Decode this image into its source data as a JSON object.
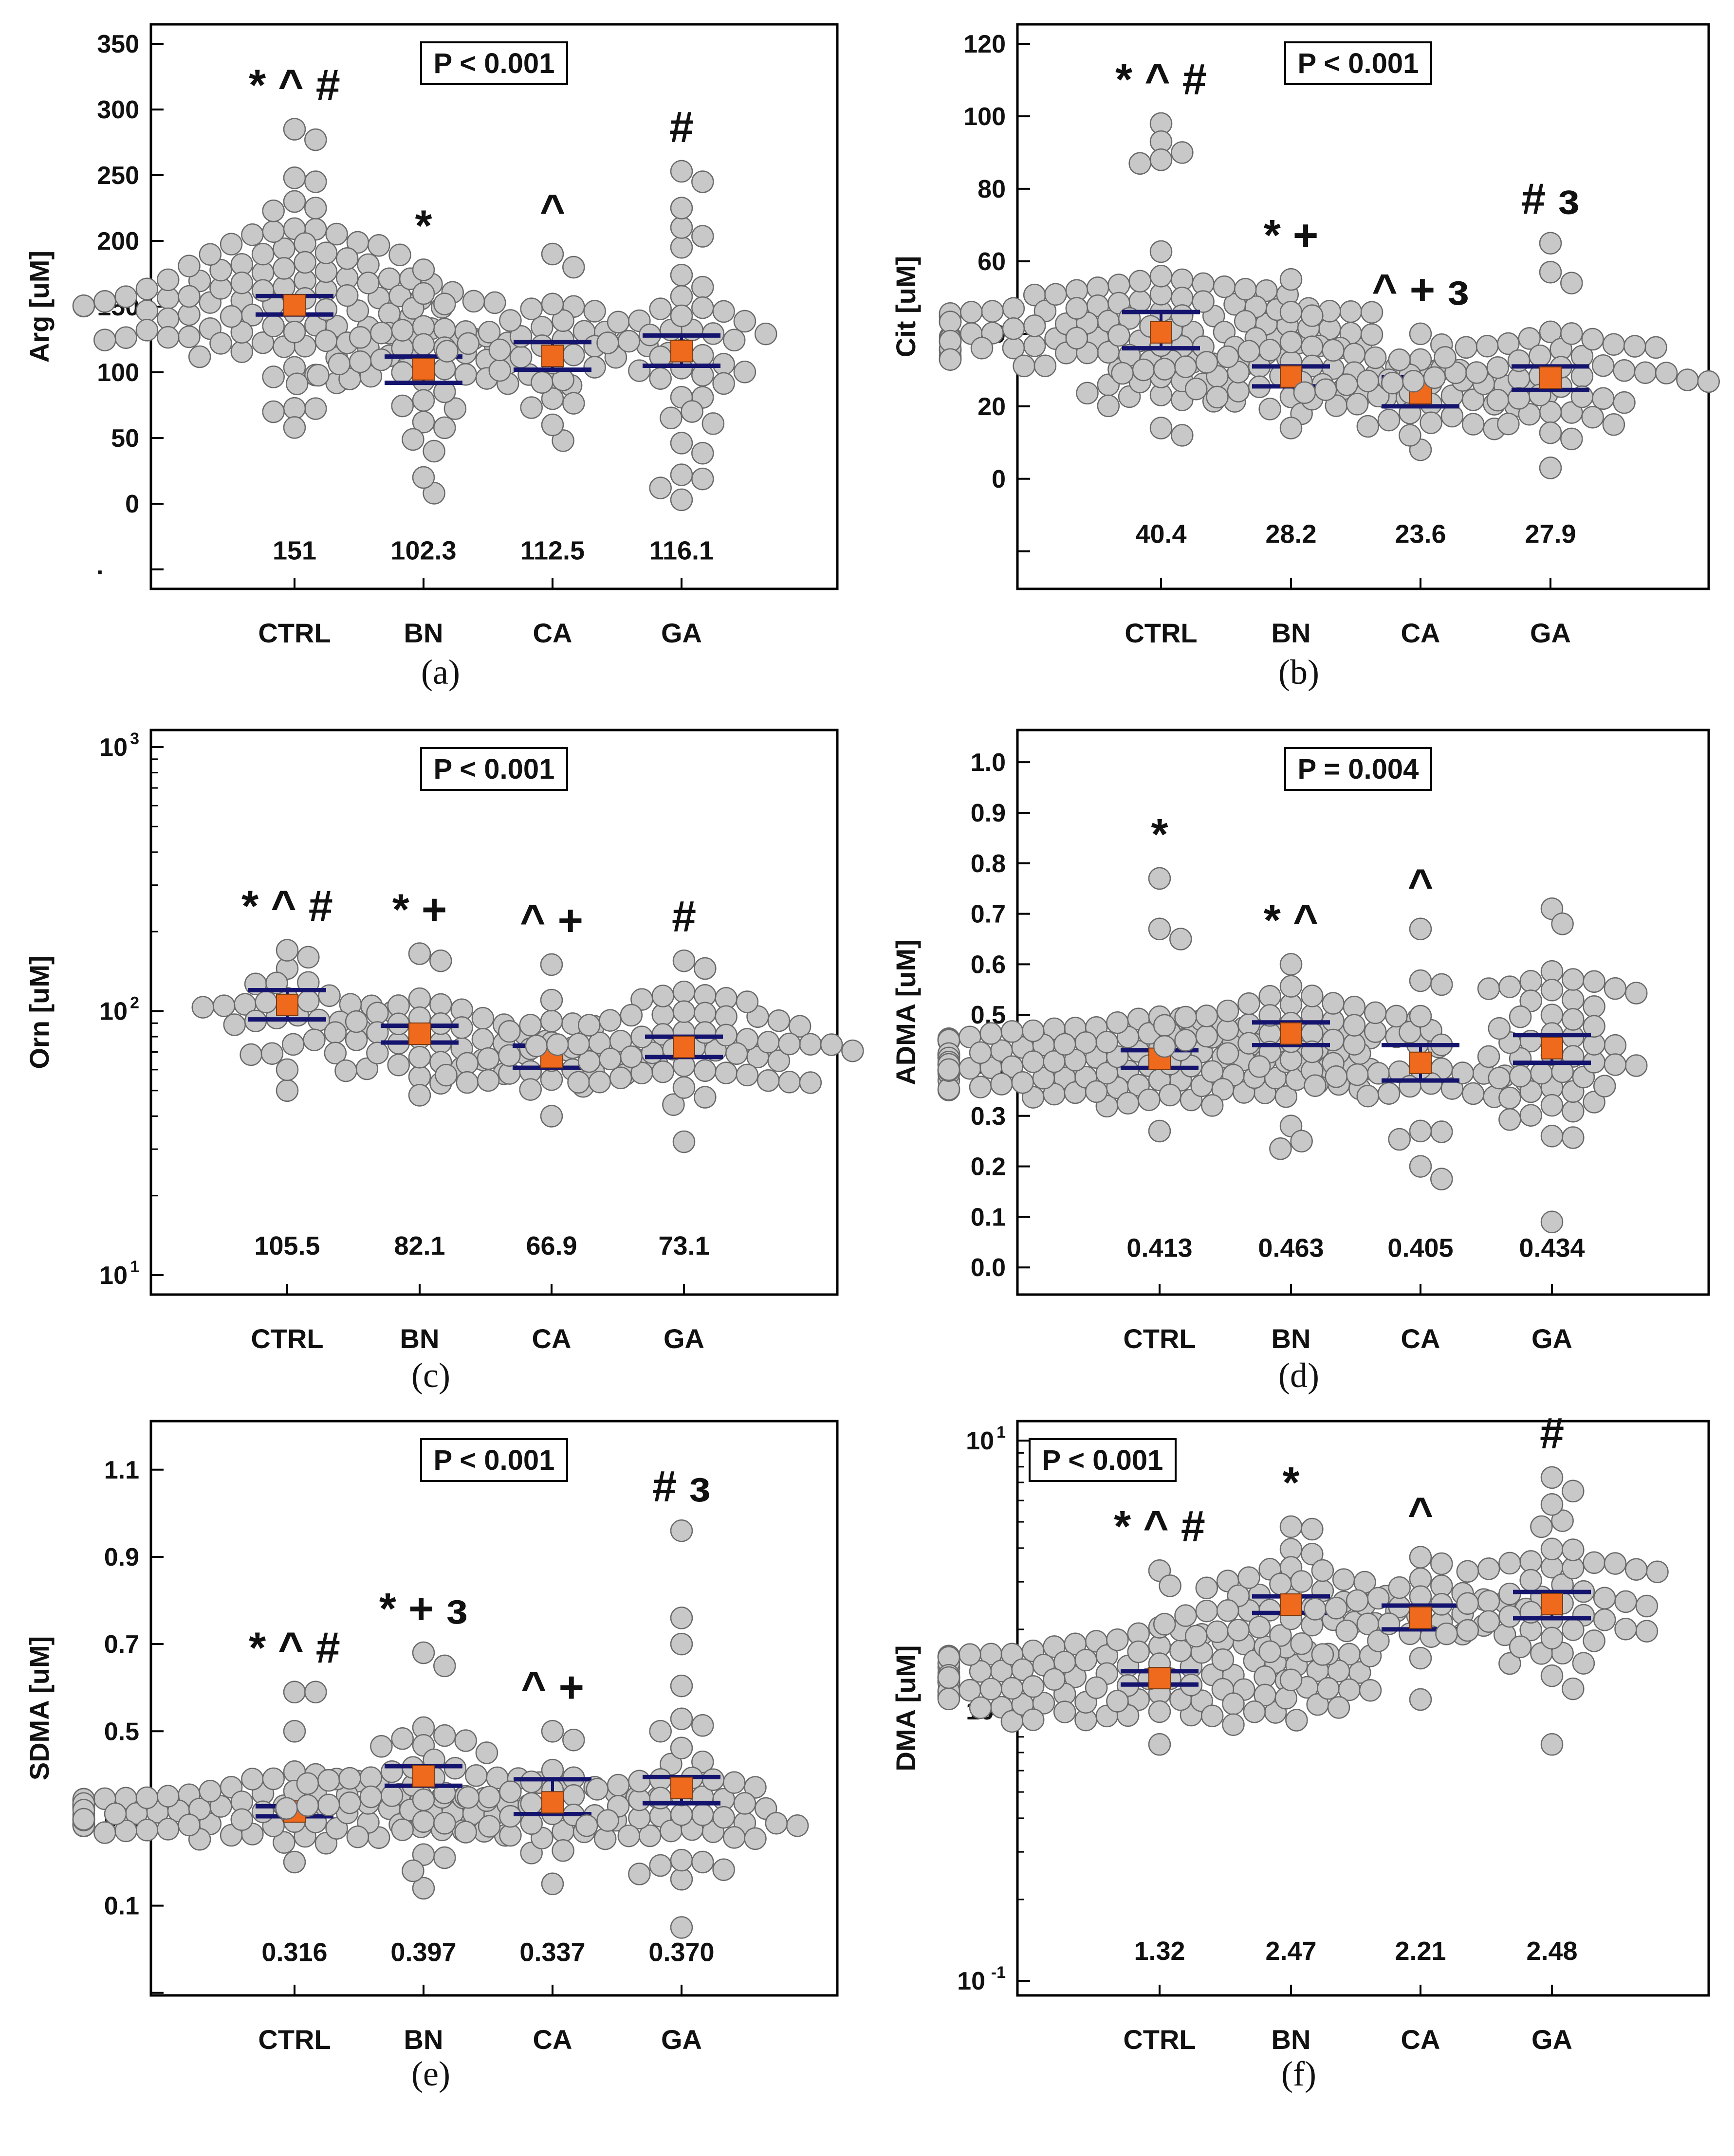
{
  "style": {
    "point_fill": "#c8c8c8",
    "point_stroke": "#6a6a6a",
    "mean_fill": "#f06a1e",
    "ci_line_color": "#14146e",
    "frame_color": "#000000"
  },
  "chart_data": [
    {
      "panel_label": "(a)",
      "type": "scatter",
      "ylabel": "Arg [uM]",
      "yscale": "linear",
      "ylim": [
        -50,
        350
      ],
      "yticks": [
        {
          "v": 350,
          "label": "350"
        },
        {
          "v": 300,
          "label": "300"
        },
        {
          "v": 250,
          "label": "250"
        },
        {
          "v": 200,
          "label": "200"
        },
        {
          "v": 150,
          "label": "150"
        },
        {
          "v": 100,
          "label": "100"
        },
        {
          "v": 50,
          "label": "50"
        },
        {
          "v": 0,
          "label": "0"
        },
        {
          "v": -50,
          "label": ""
        }
      ],
      "stray_mark": ".",
      "p_label": "P < 0.001",
      "categories": [
        "CTRL",
        "BN",
        "CA",
        "GA"
      ],
      "groups": [
        {
          "name": "CTRL",
          "mean_label": "151",
          "mean": 151,
          "ci": [
            144,
            158
          ],
          "sig": "* ^ #",
          "n": 110,
          "points": [
            58,
            70,
            285,
            277,
            248,
            245,
            230,
            225
          ]
        },
        {
          "name": "BN",
          "mean_label": "102.3",
          "mean": 102.3,
          "ci": [
            92,
            112
          ],
          "sig": "*",
          "n": 45,
          "points": [
            8,
            20,
            40,
            160,
            178
          ]
        },
        {
          "name": "CA",
          "mean_label": "112.5",
          "mean": 112.5,
          "ci": [
            102,
            123
          ],
          "sig": "^",
          "n": 35,
          "points": [
            48,
            60,
            180,
            190
          ]
        },
        {
          "name": "GA",
          "mean_label": "116.1",
          "mean": 116.1,
          "ci": [
            105,
            128
          ],
          "sig": "#",
          "n": 45,
          "points": [
            3,
            12,
            22,
            225,
            245,
            253
          ]
        }
      ],
      "summary_ypos": -35
    },
    {
      "panel_label": "(b)",
      "type": "scatter",
      "ylabel": "Cit [uM]",
      "yscale": "linear",
      "ylim": [
        -25,
        120
      ],
      "yticks": [
        {
          "v": 120,
          "label": "120"
        },
        {
          "v": 100,
          "label": "100"
        },
        {
          "v": 80,
          "label": "80"
        },
        {
          "v": 60,
          "label": "60"
        },
        {
          "v": 40,
          "label": "40"
        },
        {
          "v": 20,
          "label": "20"
        },
        {
          "v": 0,
          "label": "0"
        },
        {
          "v": -20,
          "label": ""
        }
      ],
      "p_label": "P < 0.001",
      "categories": [
        "CTRL",
        "BN",
        "CA",
        "GA"
      ],
      "groups": [
        {
          "name": "CTRL",
          "mean_label": "40.4",
          "mean": 40.4,
          "ci": [
            36,
            46
          ],
          "sig": "* ^ #",
          "n": 130,
          "points": [
            12,
            14,
            98,
            93,
            90,
            88,
            87
          ]
        },
        {
          "name": "BN",
          "mean_label": "28.2",
          "mean": 28.2,
          "ci": [
            25.5,
            31
          ],
          "sig": "* +",
          "n": 45,
          "points": [
            14,
            55,
            46,
            45
          ]
        },
        {
          "name": "CA",
          "mean_label": "23.6",
          "mean": 23.6,
          "ci": [
            20,
            28
          ],
          "sig": "^ + з",
          "n": 35,
          "points": [
            8,
            12,
            40,
            37
          ]
        },
        {
          "name": "GA",
          "mean_label": "27.9",
          "mean": 27.9,
          "ci": [
            24.5,
            31
          ],
          "sig": "# з",
          "n": 50,
          "points": [
            3,
            11,
            65,
            57,
            54
          ]
        }
      ],
      "summary_ypos": -15
    },
    {
      "panel_label": "(c)",
      "type": "scatter",
      "ylabel": "Orn [uM]",
      "yscale": "log",
      "ylim": [
        10,
        1000
      ],
      "yticks": [
        {
          "v": 1000,
          "label": "10",
          "exp": "3"
        },
        {
          "v": 100,
          "label": "10",
          "exp": "2"
        },
        {
          "v": 10,
          "label": "10",
          "exp": "1"
        }
      ],
      "p_label": "P < 0.001",
      "categories": [
        "CTRL",
        "BN",
        "CA",
        "GA"
      ],
      "groups": [
        {
          "name": "CTRL",
          "mean_label": "105.5",
          "mean": 105.5,
          "ci": [
            93,
            120
          ],
          "sig": "* ^ #",
          "n": 25,
          "points": [
            50,
            60,
            170,
            160
          ]
        },
        {
          "name": "BN",
          "mean_label": "82.1",
          "mean": 82.1,
          "ci": [
            76,
            88
          ],
          "sig": "* +",
          "n": 45,
          "points": [
            48,
            165,
            155
          ]
        },
        {
          "name": "CA",
          "mean_label": "66.9",
          "mean": 66.9,
          "ci": [
            61,
            74
          ],
          "sig": "^ +",
          "n": 30,
          "points": [
            40,
            150,
            110
          ]
        },
        {
          "name": "GA",
          "mean_label": "73.1",
          "mean": 73.1,
          "ci": [
            67,
            80
          ],
          "sig": "#",
          "n": 60,
          "points": [
            32,
            155,
            145
          ]
        }
      ],
      "summary_ypos": 13
    },
    {
      "panel_label": "(d)",
      "type": "scatter",
      "ylabel": "ADMA [uM]",
      "yscale": "linear",
      "ylim": [
        -0.02,
        1.03
      ],
      "yticks": [
        {
          "v": 1.0,
          "label": "1.0"
        },
        {
          "v": 0.9,
          "label": "0.9"
        },
        {
          "v": 0.8,
          "label": "0.8"
        },
        {
          "v": 0.7,
          "label": "0.7"
        },
        {
          "v": 0.6,
          "label": "0.6"
        },
        {
          "v": 0.5,
          "label": "0.5"
        },
        {
          "v": 0.4,
          "label": "0.4"
        },
        {
          "v": 0.3,
          "label": "0.3"
        },
        {
          "v": 0.2,
          "label": "0.2"
        },
        {
          "v": 0.1,
          "label": "0.1"
        },
        {
          "v": 0.0,
          "label": "0.0"
        }
      ],
      "p_label": "P = 0.004",
      "categories": [
        "CTRL",
        "BN",
        "CA",
        "GA"
      ],
      "groups": [
        {
          "name": "CTRL",
          "mean_label": "0.413",
          "mean": 0.413,
          "ci": [
            0.395,
            0.43
          ],
          "sig": "*",
          "n": 130,
          "points": [
            0.27,
            0.77,
            0.67,
            0.65
          ]
        },
        {
          "name": "BN",
          "mean_label": "0.463",
          "mean": 0.463,
          "ci": [
            0.44,
            0.485
          ],
          "sig": "* ^",
          "n": 45,
          "points": [
            0.235,
            0.28,
            0.25,
            0.6
          ]
        },
        {
          "name": "CA",
          "mean_label": "0.405",
          "mean": 0.405,
          "ci": [
            0.37,
            0.44
          ],
          "sig": "^",
          "n": 30,
          "points": [
            0.175,
            0.2,
            0.67,
            0.56
          ]
        },
        {
          "name": "GA",
          "mean_label": "0.434",
          "mean": 0.434,
          "ci": [
            0.405,
            0.46
          ],
          "sig": "",
          "n": 50,
          "points": [
            0.09,
            0.26,
            0.71,
            0.68
          ]
        }
      ],
      "summary_ypos": 0.04
    },
    {
      "panel_label": "(e)",
      "type": "scatter",
      "ylabel": "SDMA [uM]",
      "yscale": "linear",
      "ylim": [
        -0.05,
        1.15
      ],
      "yticks": [
        {
          "v": 1.1,
          "label": "1.1"
        },
        {
          "v": 0.9,
          "label": "0.9"
        },
        {
          "v": 0.7,
          "label": "0.7"
        },
        {
          "v": 0.5,
          "label": "0.5"
        },
        {
          "v": 0.3,
          "label": "0.3"
        },
        {
          "v": 0.1,
          "label": "0.1"
        },
        {
          "v": -0.1,
          "label": ""
        }
      ],
      "p_label": "P < 0.001",
      "categories": [
        "CTRL",
        "BN",
        "CA",
        "GA"
      ],
      "groups": [
        {
          "name": "CTRL",
          "mean_label": "0.316",
          "mean": 0.316,
          "ci": [
            0.305,
            0.328
          ],
          "sig": "* ^ #",
          "n": 110,
          "points": [
            0.2,
            0.59,
            0.59,
            0.5
          ]
        },
        {
          "name": "BN",
          "mean_label": "0.397",
          "mean": 0.397,
          "ci": [
            0.375,
            0.42
          ],
          "sig": "* + з",
          "n": 45,
          "points": [
            0.14,
            0.18,
            0.21,
            0.68,
            0.65
          ]
        },
        {
          "name": "CA",
          "mean_label": "0.337",
          "mean": 0.337,
          "ci": [
            0.31,
            0.39
          ],
          "sig": "^ +",
          "n": 30,
          "points": [
            0.15,
            0.5,
            0.48
          ]
        },
        {
          "name": "GA",
          "mean_label": "0.370",
          "mean": 0.37,
          "ci": [
            0.335,
            0.395
          ],
          "sig": "# з",
          "n": 50,
          "points": [
            0.05,
            0.2,
            0.96,
            0.76,
            0.7
          ]
        }
      ],
      "summary_ypos": -0.005
    },
    {
      "panel_label": "(f)",
      "type": "scatter",
      "ylabel": "DMA [uM]",
      "yscale": "log",
      "ylim": [
        0.1,
        10
      ],
      "yticks": [
        {
          "v": 10,
          "label": "10",
          "exp": "1"
        },
        {
          "v": 1,
          "label": "10",
          "exp": "0"
        },
        {
          "v": 0.1,
          "label": "10",
          "exp": "-1"
        }
      ],
      "p_label": "P < 0.001",
      "categories": [
        "CTRL",
        "BN",
        "CA",
        "GA"
      ],
      "groups": [
        {
          "name": "CTRL",
          "mean_label": "1.32",
          "mean": 1.32,
          "ci": [
            1.25,
            1.4
          ],
          "sig": "* ^ #",
          "n": 130,
          "points": [
            0.75,
            3.3,
            2.9
          ]
        },
        {
          "name": "BN",
          "mean_label": "2.47",
          "mean": 2.47,
          "ci": [
            2.3,
            2.65
          ],
          "sig": "*",
          "n": 45,
          "points": [
            1.3,
            4.8,
            4.7
          ]
        },
        {
          "name": "CA",
          "mean_label": "2.21",
          "mean": 2.21,
          "ci": [
            2.0,
            2.45
          ],
          "sig": "^",
          "n": 30,
          "points": [
            1.1,
            3.7,
            3.5
          ]
        },
        {
          "name": "GA",
          "mean_label": "2.48",
          "mean": 2.48,
          "ci": [
            2.2,
            2.75
          ],
          "sig": "#",
          "n": 50,
          "points": [
            0.75,
            7.3,
            6.5,
            5.8,
            4.8
          ]
        }
      ],
      "summary_ypos": 0.13
    }
  ]
}
